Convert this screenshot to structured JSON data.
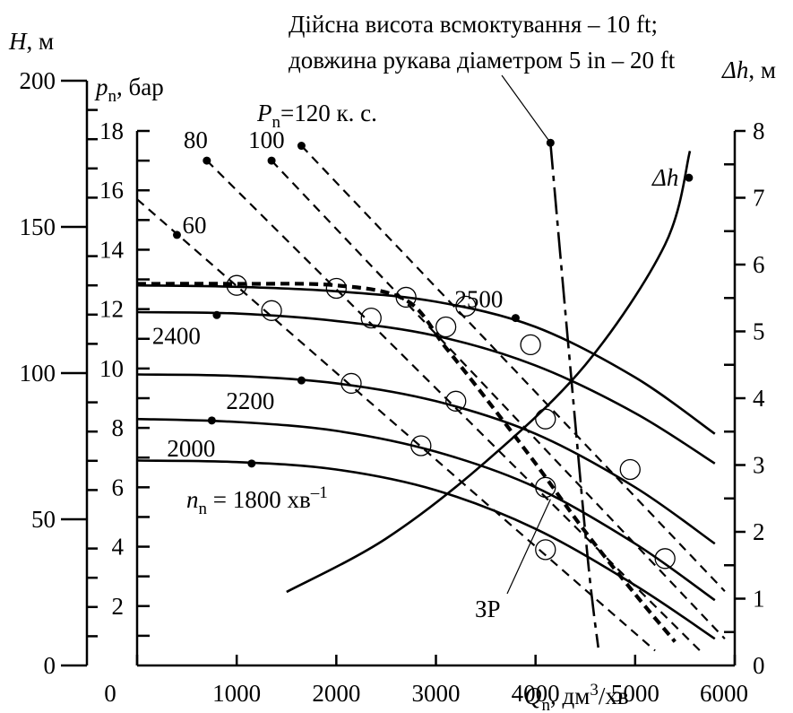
{
  "chart_data": {
    "type": "line",
    "x_axis": {
      "label_main": "Q",
      "label_sub": "n",
      "label_rest": ", дм",
      "label_sup": "3",
      "label_end": "/хв",
      "range": [
        0,
        6000
      ],
      "ticks": [
        "0",
        "1000",
        "2000",
        "3000",
        "4000",
        "5000",
        "6000"
      ],
      "tick_values": [
        0,
        1000,
        2000,
        3000,
        4000,
        5000,
        6000
      ]
    },
    "y_axis_H": {
      "label_main": "H",
      "label_rest": ", м",
      "range": [
        0,
        200
      ],
      "ticks": [
        "0",
        "50",
        "100",
        "150",
        "200"
      ],
      "tick_values": [
        0,
        50,
        100,
        150,
        200
      ]
    },
    "y_axis_p": {
      "label_main": "p",
      "label_sub": "n",
      "label_rest": ", бар",
      "range": [
        0,
        18
      ],
      "ticks": [
        "2",
        "4",
        "6",
        "8",
        "10",
        "12",
        "14",
        "16",
        "18"
      ],
      "tick_values": [
        2,
        4,
        6,
        8,
        10,
        12,
        14,
        16,
        18
      ]
    },
    "y_axis_dh": {
      "label_main": "Δh",
      "label_rest": ", м",
      "range": [
        0,
        8
      ],
      "ticks": [
        "0",
        "1",
        "2",
        "3",
        "4",
        "5",
        "6",
        "7",
        "8"
      ],
      "tick_values": [
        0,
        1,
        2,
        3,
        4,
        5,
        6,
        7,
        8
      ]
    },
    "annotation_top": [
      "Дійсна висота всмоктування – 10 ft;",
      "довжина рукава діаметром 5 in – 20 ft"
    ],
    "speed_label_prefix": "n",
    "speed_label_sub": "n",
    "speed_label_value": " = 1800 хв",
    "speed_label_sup": "–1",
    "power_label_prefix": "P",
    "power_label_sub": "n",
    "power_label_value": "=120 к. с.",
    "zp_label": "ЗР",
    "dh_label": "Δh",
    "speed_curves": [
      {
        "label": "",
        "dot": [
          1150,
          6.8
        ],
        "points": [
          [
            0,
            6.9
          ],
          [
            1000,
            6.85
          ],
          [
            2000,
            6.6
          ],
          [
            3000,
            5.9
          ],
          [
            4000,
            4.6
          ],
          [
            5000,
            2.7
          ],
          [
            5800,
            0.9
          ]
        ]
      },
      {
        "label": "2000",
        "dot": [
          750,
          8.25
        ],
        "points": [
          [
            0,
            8.3
          ],
          [
            1000,
            8.2
          ],
          [
            2000,
            7.9
          ],
          [
            3000,
            7.2
          ],
          [
            4000,
            6.0
          ],
          [
            5000,
            4.1
          ],
          [
            5800,
            2.2
          ]
        ]
      },
      {
        "label": "2200",
        "dot": [
          1650,
          9.6
        ],
        "points": [
          [
            0,
            9.8
          ],
          [
            1000,
            9.75
          ],
          [
            2000,
            9.5
          ],
          [
            3000,
            8.9
          ],
          [
            4000,
            7.8
          ],
          [
            5000,
            6.0
          ],
          [
            5800,
            4.1
          ]
        ]
      },
      {
        "label": "2400",
        "dot": [
          800,
          11.8
        ],
        "points": [
          [
            0,
            11.9
          ],
          [
            1000,
            11.85
          ],
          [
            2000,
            11.6
          ],
          [
            3000,
            11.1
          ],
          [
            4000,
            10.1
          ],
          [
            5000,
            8.5
          ],
          [
            5800,
            6.8
          ]
        ]
      },
      {
        "label": "2500",
        "dot": [
          3800,
          11.7
        ],
        "points": [
          [
            0,
            12.8
          ],
          [
            1000,
            12.75
          ],
          [
            2000,
            12.6
          ],
          [
            3000,
            12.25
          ],
          [
            4000,
            11.4
          ],
          [
            5000,
            9.7
          ],
          [
            5800,
            7.8
          ]
        ]
      }
    ],
    "power_lines": [
      {
        "label": "60",
        "dot": [
          400,
          14.5
        ],
        "start": [
          0,
          15.7
        ],
        "end": [
          5200,
          0.5
        ]
      },
      {
        "label": "80",
        "dot": [
          700,
          17.0
        ],
        "start": [
          700,
          17.0
        ],
        "end": [
          5650,
          0.5
        ]
      },
      {
        "label": "100",
        "dot": [
          1350,
          17.0
        ],
        "start": [
          1350,
          17.0
        ],
        "end": [
          5900,
          0.9
        ]
      },
      {
        "label": "",
        "dot": [
          1650,
          17.5
        ],
        "start": [
          1650,
          17.5
        ],
        "end": [
          5900,
          2.5
        ]
      }
    ],
    "zp_curve": [
      [
        0,
        12.85
      ],
      [
        1000,
        12.85
      ],
      [
        2000,
        12.8
      ],
      [
        2700,
        12.3
      ],
      [
        3100,
        10.7
      ],
      [
        3500,
        9.0
      ],
      [
        4000,
        6.8
      ],
      [
        4500,
        4.5
      ],
      [
        5000,
        2.4
      ],
      [
        5400,
        0.8
      ]
    ],
    "suction_line": [
      [
        4150,
        17.6
      ],
      [
        4350,
        10.0
      ],
      [
        4530,
        3.4
      ],
      [
        4630,
        0.6
      ]
    ],
    "dh_curve": [
      [
        1500,
        1.1
      ],
      [
        2500,
        1.9
      ],
      [
        3500,
        3.05
      ],
      [
        4500,
        4.5
      ],
      [
        5300,
        6.3
      ],
      [
        5550,
        7.7
      ]
    ],
    "dh_dot": [
      5540,
      7.3
    ],
    "op_circles": [
      [
        1000,
        12.8
      ],
      [
        1350,
        11.95
      ],
      [
        2000,
        12.7
      ],
      [
        2350,
        11.7
      ],
      [
        2150,
        9.5
      ],
      [
        2700,
        12.4
      ],
      [
        2850,
        7.4
      ],
      [
        3100,
        11.4
      ],
      [
        3200,
        8.9
      ],
      [
        3300,
        12.1
      ],
      [
        3950,
        10.8
      ],
      [
        4100,
        6.0
      ],
      [
        4100,
        3.9
      ],
      [
        4100,
        8.3
      ],
      [
        4950,
        6.6
      ],
      [
        5300,
        3.6
      ]
    ]
  }
}
